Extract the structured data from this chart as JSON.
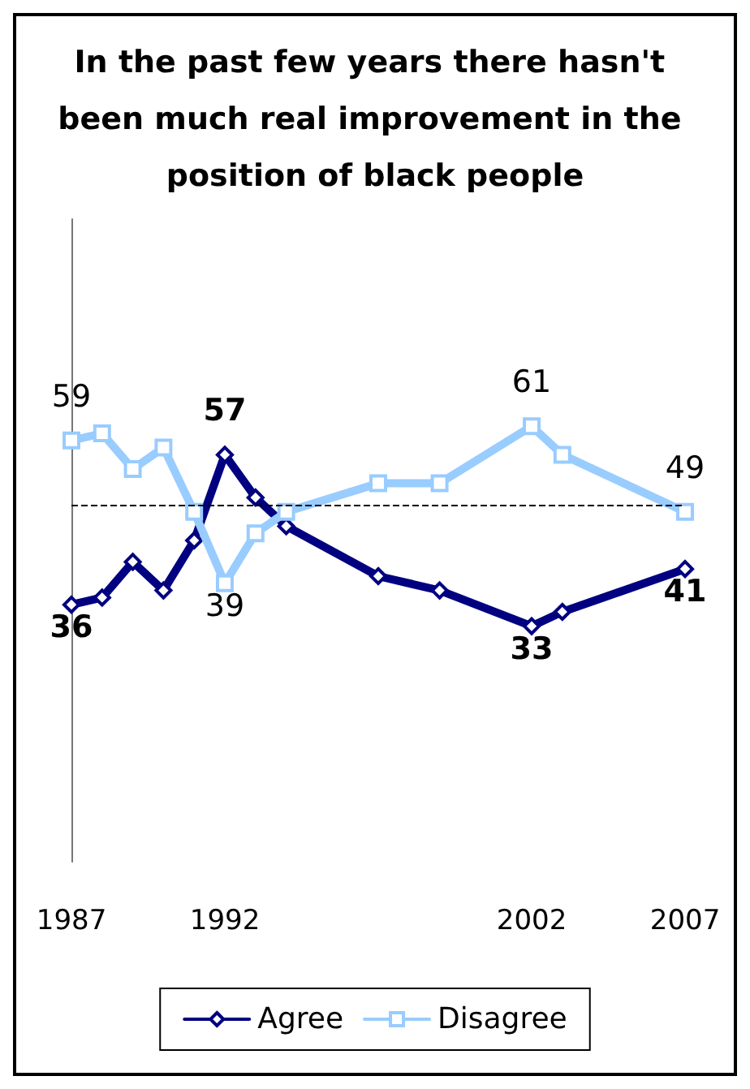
{
  "chart_data": {
    "type": "line",
    "title": "In the past few years there hasn't been much real improvement in the position of black people",
    "x": [
      1987,
      1988,
      1989,
      1990,
      1991,
      1992,
      1993,
      1994,
      1997,
      1999,
      2002,
      2003,
      2007
    ],
    "series": [
      {
        "name": "Agree",
        "color": "#000080",
        "marker": "diamond",
        "values": [
          36,
          37,
          42,
          38,
          45,
          57,
          51,
          47,
          40,
          38,
          33,
          35,
          41
        ],
        "value_labels": [
          "36",
          null,
          null,
          null,
          null,
          "57",
          null,
          null,
          null,
          null,
          "33",
          null,
          "41"
        ]
      },
      {
        "name": "Disagree",
        "color": "#99ccff",
        "marker": "square",
        "values": [
          59,
          60,
          55,
          58,
          49,
          39,
          46,
          49,
          53,
          53,
          61,
          57,
          49
        ],
        "value_labels": [
          "59",
          null,
          null,
          null,
          null,
          "39",
          null,
          null,
          null,
          null,
          "61",
          null,
          "49"
        ]
      }
    ],
    "xlim": [
      1987,
      2007
    ],
    "xticks": [
      1987,
      1992,
      2002,
      2007
    ],
    "ylim": [
      0,
      90
    ],
    "tick_labels": "x",
    "grid": false,
    "legend": "bottom",
    "ref_lines": [
      {
        "axis": "y",
        "value": 50,
        "line_style": "dashed",
        "color": "#000000"
      }
    ]
  }
}
